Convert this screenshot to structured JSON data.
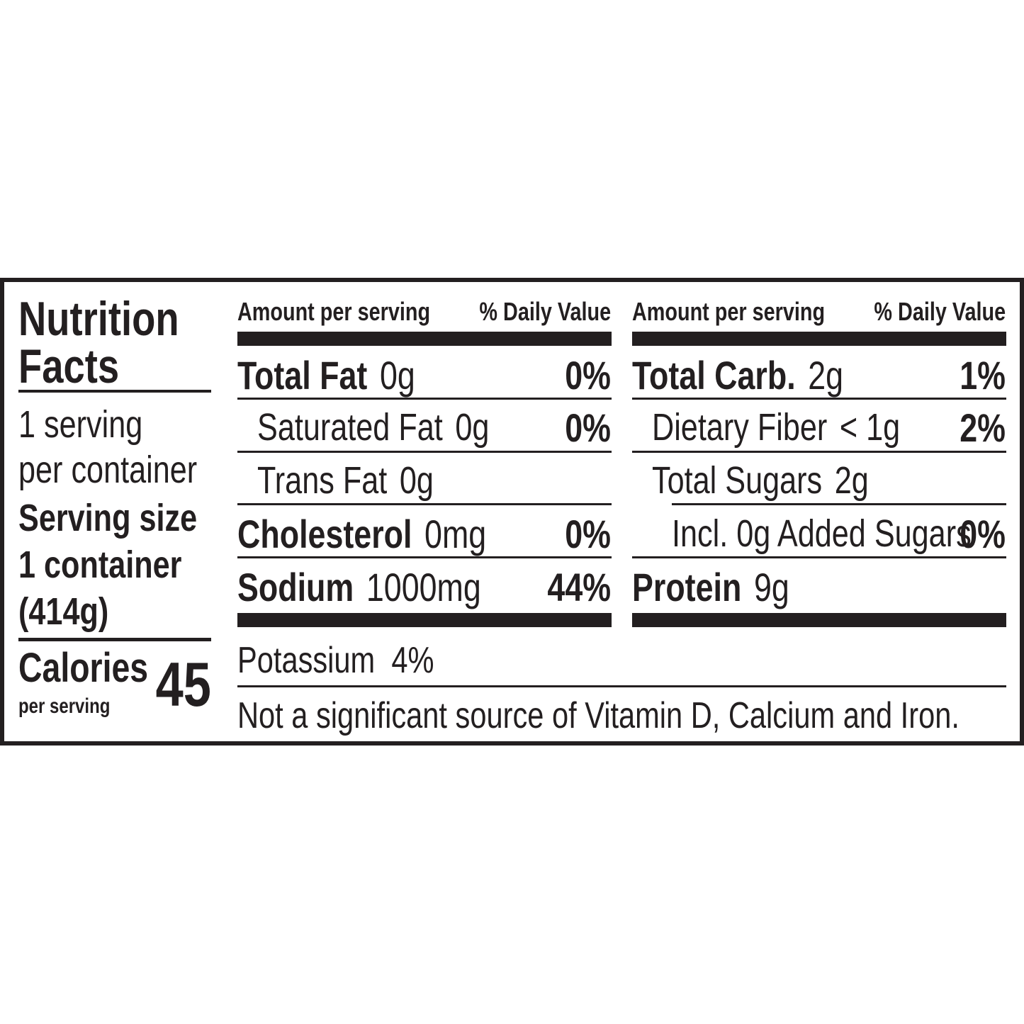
{
  "left": {
    "title_line1": "Nutrition",
    "title_line2": "Facts",
    "servings_line1": "1 serving",
    "servings_line2": "per container",
    "serving_size_label": "Serving size",
    "serving_size_line1": "1 container",
    "serving_size_line2": "(414g)",
    "calories_label": "Calories",
    "calories_sub": "per serving",
    "calories_value": "45"
  },
  "middle": {
    "header_amount": "Amount per serving",
    "header_dv": "% Daily Value",
    "rows": [
      {
        "name": "Total Fat",
        "amount": "0g",
        "dv": "0%"
      },
      {
        "name": "Saturated Fat",
        "amount": "0g",
        "dv": "0%"
      },
      {
        "name": "Trans Fat",
        "amount": "0g",
        "dv": ""
      },
      {
        "name": "Cholesterol",
        "amount": "0mg",
        "dv": "0%"
      },
      {
        "name": "Sodium",
        "amount": "1000mg",
        "dv": "44%"
      }
    ]
  },
  "right": {
    "header_amount": "Amount per serving",
    "header_dv": "% Daily Value",
    "rows": [
      {
        "name": "Total Carb.",
        "amount": "2g",
        "dv": "1%"
      },
      {
        "name": "Dietary Fiber",
        "amount": "< 1g",
        "dv": "2%"
      },
      {
        "name": "Total Sugars",
        "amount": "2g",
        "dv": ""
      },
      {
        "name": "Incl. 0g Added Sugars",
        "amount": "",
        "dv": "0%"
      },
      {
        "name": "Protein",
        "amount": "9g",
        "dv": ""
      }
    ]
  },
  "footer": {
    "potassium": "Potassium  4%",
    "note": "Not a significant source of Vitamin D, Calcium and Iron."
  }
}
